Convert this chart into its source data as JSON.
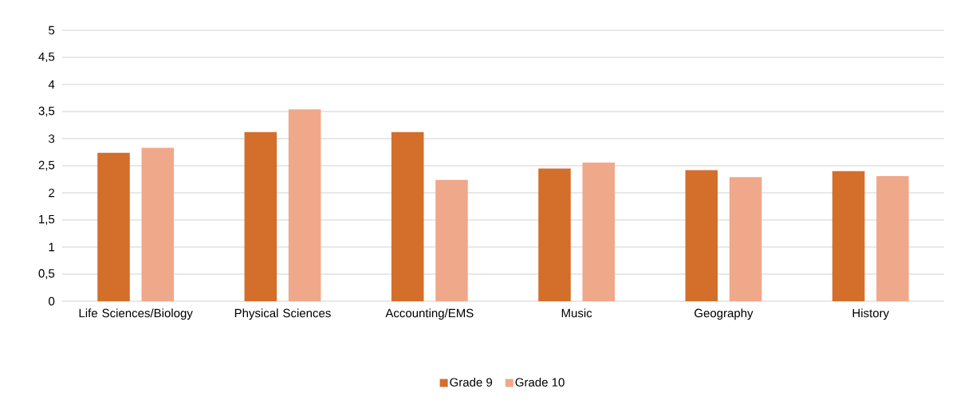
{
  "chart_data": {
    "type": "bar",
    "categories": [
      "Life Sciences/Biology",
      "Physical Sciences",
      "Accounting/EMS",
      "Music",
      "Geography",
      "History"
    ],
    "series": [
      {
        "name": "Grade 9",
        "color": "#d36e2b",
        "values": [
          2.74,
          3.12,
          3.12,
          2.45,
          2.42,
          2.4
        ]
      },
      {
        "name": "Grade 10",
        "color": "#f0a88a",
        "values": [
          2.83,
          3.54,
          2.24,
          2.56,
          2.29,
          2.31
        ]
      }
    ],
    "ylim": [
      0,
      5
    ],
    "yticks": [
      0,
      {
        "value": 0.5,
        "label": "0,5"
      },
      1,
      {
        "value": 1.5,
        "label": "1,5"
      },
      2,
      {
        "value": 2.5,
        "label": "2,5"
      },
      3,
      {
        "value": 3.5,
        "label": "3,5"
      },
      4,
      {
        "value": 4.5,
        "label": "4,5"
      },
      5
    ],
    "grid": "y",
    "legend": "bottom"
  }
}
